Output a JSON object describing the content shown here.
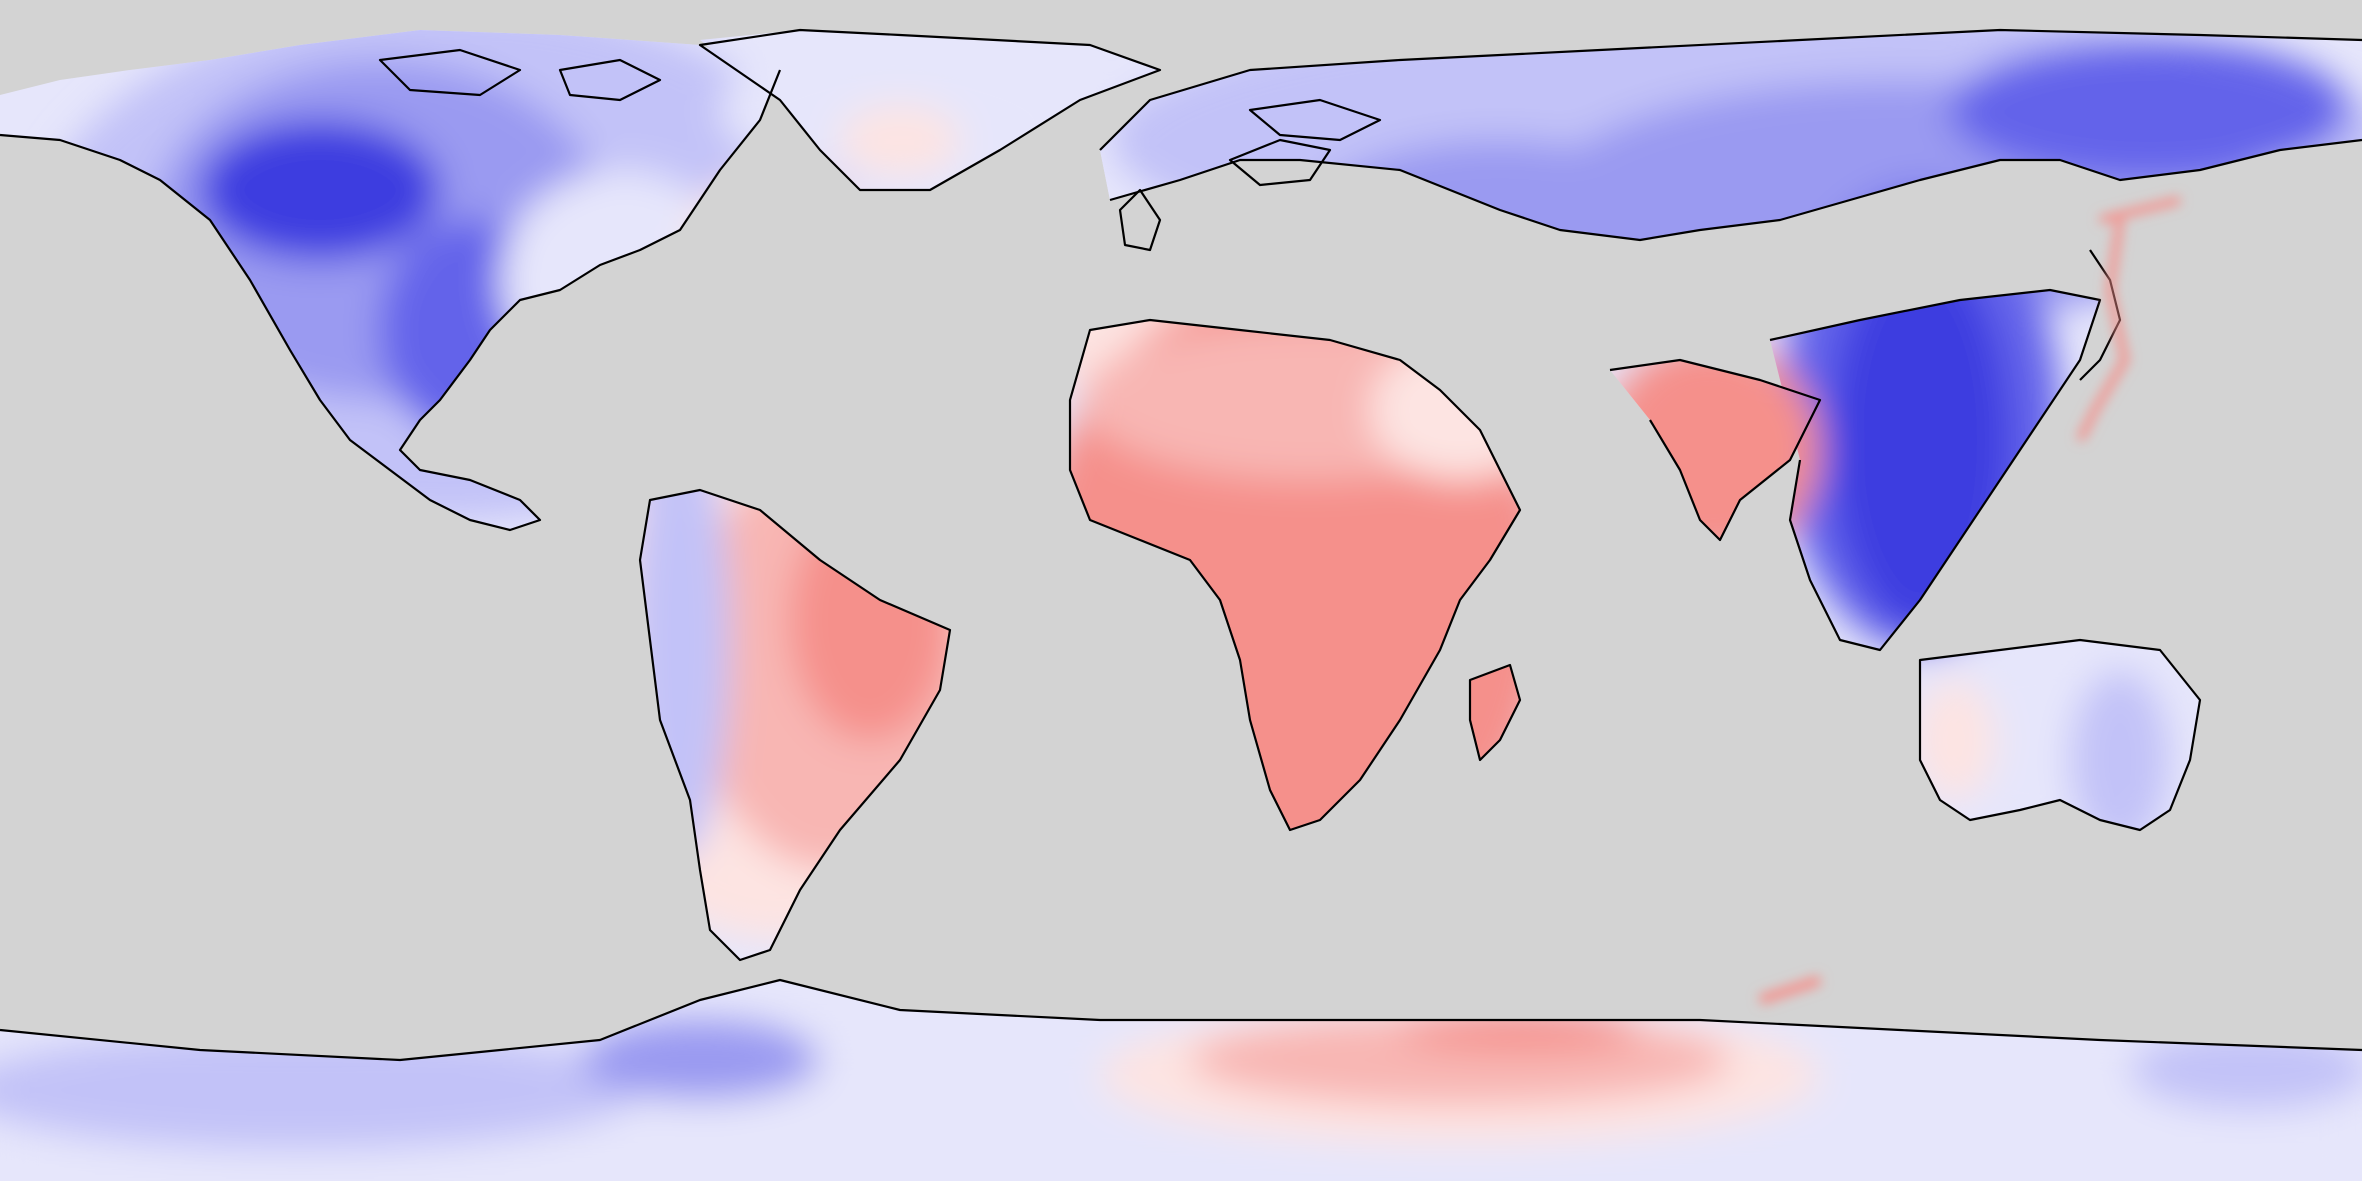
{
  "map": {
    "projection": "equirectangular",
    "ocean_color": "#d3d3d3",
    "coastline_color": "#000000",
    "legend": "none",
    "palette": {
      "red_strong": "#f5908b",
      "red_mid": "#f8b6b3",
      "red_light": "#fde4e2",
      "blue_pale": "#e6e6fb",
      "blue_light": "#c2c2f8",
      "blue_mid": "#9a9af1",
      "blue_strong": "#6464ea",
      "blue_deep": "#3c3ce0"
    },
    "regions": [
      {
        "id": "north-america",
        "value_class": "blue_mid"
      },
      {
        "id": "greenland",
        "value_class": "blue_pale"
      },
      {
        "id": "south-america",
        "value_class": "red_mid"
      },
      {
        "id": "africa",
        "value_class": "red_strong"
      },
      {
        "id": "europe",
        "value_class": "blue_pale"
      },
      {
        "id": "russia-north-asia",
        "value_class": "blue_light"
      },
      {
        "id": "east-asia",
        "value_class": "blue_deep"
      },
      {
        "id": "india",
        "value_class": "red_strong"
      },
      {
        "id": "middle-east",
        "value_class": "red_light"
      },
      {
        "id": "australia",
        "value_class": "blue_pale"
      },
      {
        "id": "antarctica",
        "value_class": "blue_pale"
      },
      {
        "id": "east-antarctica-anomaly",
        "value_class": "red_mid"
      }
    ]
  }
}
